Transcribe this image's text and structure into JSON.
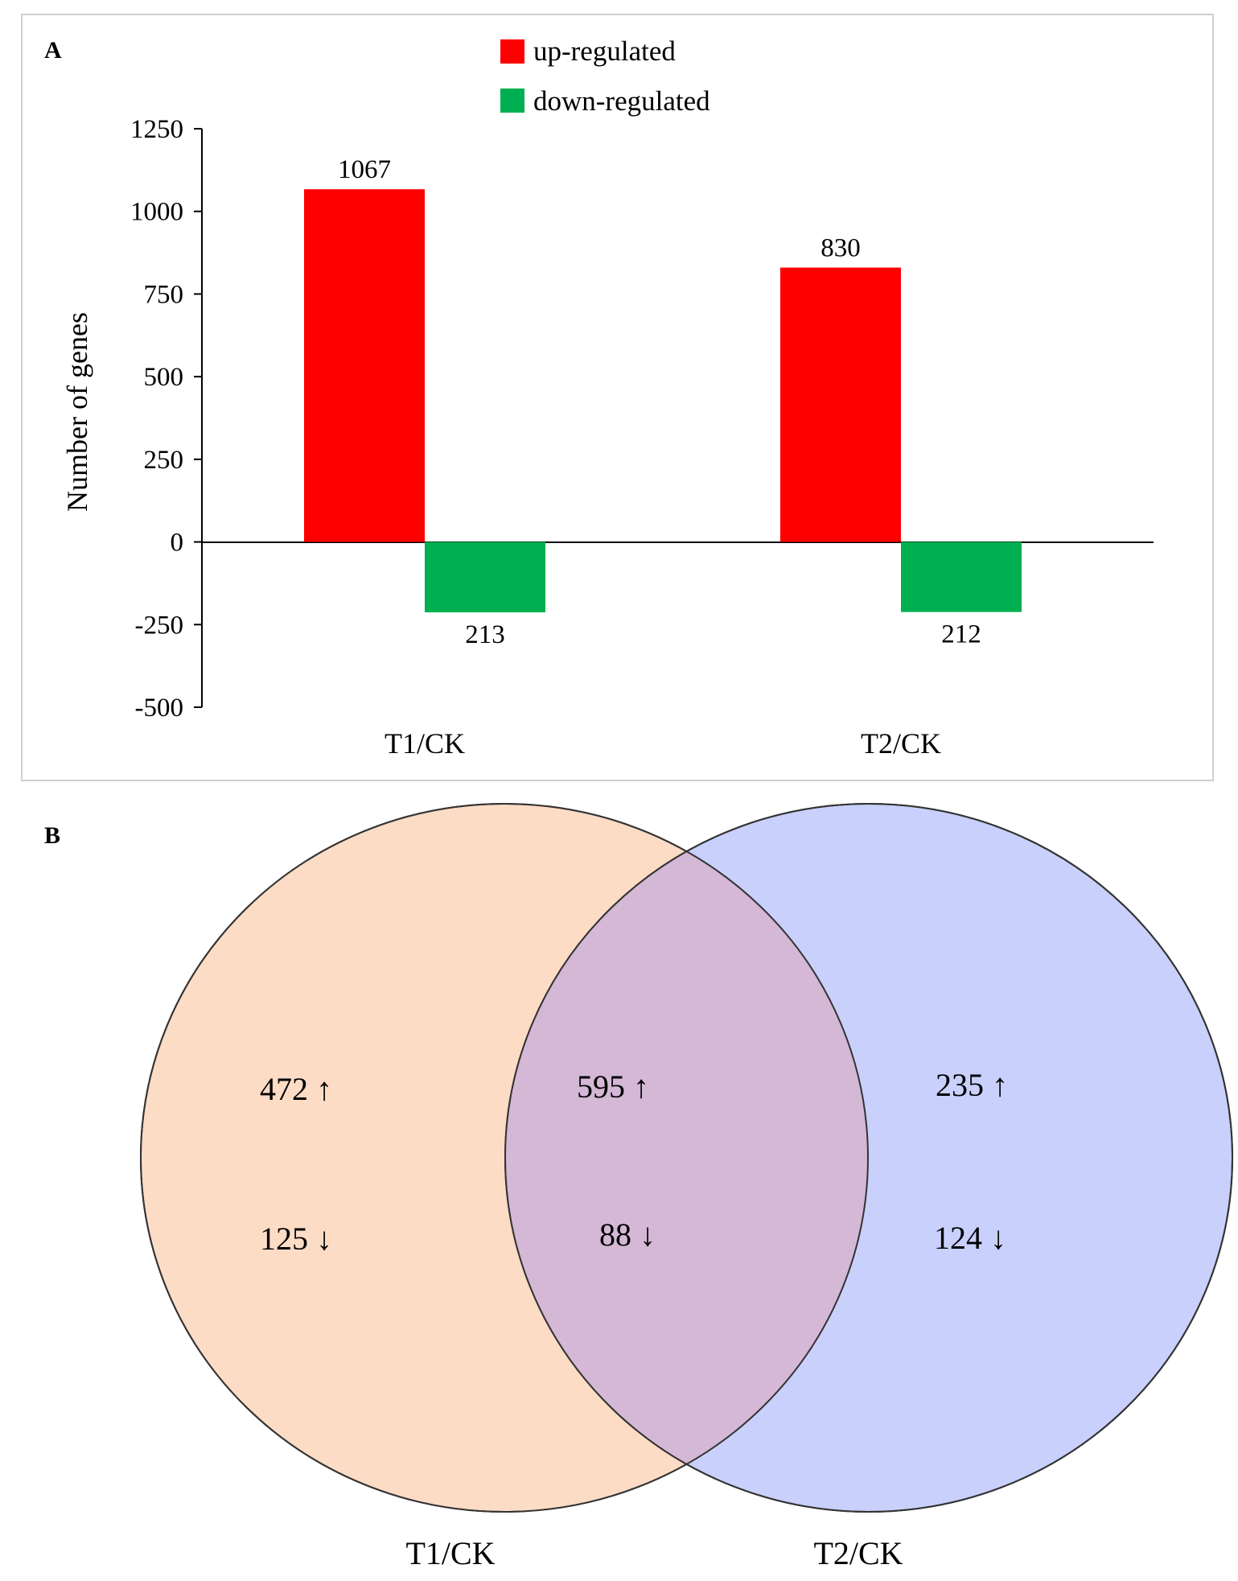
{
  "chart_data": [
    {
      "panel_label": "A",
      "type": "bar",
      "categories": [
        "T1/CK",
        "T2/CK"
      ],
      "series": [
        {
          "name": "up-regulated",
          "color": "#ff0000",
          "values": [
            1067,
            830
          ],
          "labels": [
            "1067",
            "830"
          ]
        },
        {
          "name": "down-regulated",
          "color": "#00b050",
          "values": [
            -213,
            -212
          ],
          "labels": [
            "213",
            "212"
          ]
        }
      ],
      "ylabel": "Number of genes",
      "xlabel": "",
      "ylim": [
        -500,
        1250
      ],
      "yticks": [
        1250,
        1000,
        750,
        500,
        250,
        0,
        -250,
        -500
      ],
      "ytick_labels": [
        "1250",
        "1000",
        "750",
        "500",
        "250",
        "0",
        "-250",
        "-500"
      ],
      "legend": "top-center",
      "grid": false
    },
    {
      "panel_label": "B",
      "type": "venn",
      "sets": [
        {
          "name": "T1/CK",
          "color": "#fddcc6"
        },
        {
          "name": "T2/CK",
          "color": "#c9d0fb"
        }
      ],
      "overlap_color": "#d4b8d6",
      "regions": {
        "T1_only": {
          "up": "472 ↑",
          "down": "125 ↓"
        },
        "both": {
          "up": "595 ↑",
          "down": "88 ↓"
        },
        "T2_only": {
          "up": "235 ↑",
          "down": "124 ↓"
        }
      }
    }
  ]
}
